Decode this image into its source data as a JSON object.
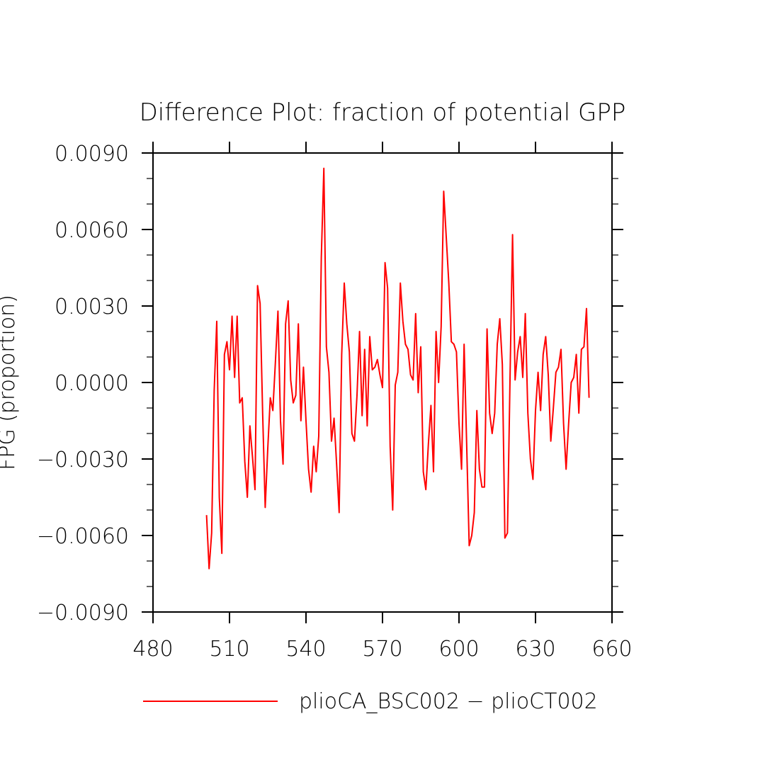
{
  "chart_data": {
    "type": "line",
    "title": "Difference Plot: fraction of potential GPP",
    "xlabel": "",
    "ylabel": "FPG  (proportion)",
    "xlim": [
      480,
      660
    ],
    "ylim": [
      -0.009,
      0.009
    ],
    "x_ticks": [
      480,
      510,
      540,
      570,
      600,
      630,
      660
    ],
    "x_tick_labels": [
      "480",
      "510",
      "540",
      "570",
      "600",
      "630",
      "660"
    ],
    "y_ticks": [
      -0.009,
      -0.006,
      -0.003,
      0.0,
      0.003,
      0.006,
      0.009
    ],
    "y_tick_labels": [
      "−0.0090",
      "−0.0060",
      "−0.0030",
      "0.0000",
      "0.0030",
      "0.0060",
      "0.0090"
    ],
    "series": [
      {
        "name": "plioCA_BSC002 − plioCT002",
        "color": "#ff0000",
        "x": [
          501,
          502,
          503,
          504,
          505,
          506,
          507,
          508,
          509,
          510,
          511,
          512,
          513,
          514,
          515,
          516,
          517,
          518,
          519,
          520,
          521,
          522,
          523,
          524,
          525,
          526,
          527,
          528,
          529,
          530,
          531,
          532,
          533,
          534,
          535,
          536,
          537,
          538,
          539,
          540,
          541,
          542,
          543,
          544,
          545,
          546,
          547,
          548,
          549,
          550,
          551,
          552,
          553,
          554,
          555,
          556,
          557,
          558,
          559,
          560,
          561,
          562,
          563,
          564,
          565,
          566,
          567,
          568,
          569,
          570,
          571,
          572,
          573,
          574,
          575,
          576,
          577,
          578,
          579,
          580,
          581,
          582,
          583,
          584,
          585,
          586,
          587,
          588,
          589,
          590,
          591,
          592,
          593,
          594,
          595,
          596,
          597,
          598,
          599,
          600,
          601,
          602,
          603,
          604,
          605,
          606,
          607,
          608,
          609,
          610,
          611,
          612,
          613,
          614,
          615,
          616,
          617,
          618,
          619,
          620,
          621,
          622,
          623,
          624,
          625,
          626,
          627,
          628,
          629,
          630,
          631,
          632,
          633,
          634,
          635,
          636,
          637,
          638,
          639,
          640,
          641,
          642,
          643,
          644,
          645,
          646,
          647,
          648,
          649,
          650,
          651
        ],
        "values": [
          -0.0052,
          -0.0073,
          -0.0059,
          -0.0003,
          0.0024,
          -0.0045,
          -0.0067,
          0.0011,
          0.0016,
          0.0005,
          0.0026,
          0.0002,
          0.0026,
          -0.0008,
          -0.0006,
          -0.0031,
          -0.0045,
          -0.0017,
          -0.0029,
          -0.0042,
          0.0038,
          0.0031,
          -0.0012,
          -0.0049,
          -0.0026,
          -0.0006,
          -0.0011,
          0.0008,
          0.0028,
          -0.0015,
          -0.0032,
          0.0023,
          0.0032,
          0.0001,
          -0.0008,
          -0.0005,
          0.0023,
          -0.0015,
          0.0006,
          -0.0015,
          -0.0034,
          -0.0043,
          -0.0025,
          -0.0035,
          -0.0021,
          0.0049,
          0.0084,
          0.0014,
          0.0004,
          -0.0023,
          -0.0014,
          -0.0032,
          -0.0051,
          0.0011,
          0.0039,
          0.0023,
          0.0012,
          -0.002,
          -0.0023,
          -0.0005,
          0.002,
          -0.0013,
          0.0013,
          -0.0017,
          0.0018,
          0.0005,
          0.0006,
          0.0009,
          0.0003,
          -0.0002,
          0.0047,
          0.0037,
          -0.0025,
          -0.005,
          -0.0001,
          0.0004,
          0.0039,
          0.0024,
          0.0015,
          0.0013,
          0.0003,
          0.0001,
          0.0027,
          -0.0004,
          0.0014,
          -0.0035,
          -0.0042,
          -0.0024,
          -0.0009,
          -0.0035,
          0.002,
          0.0,
          0.0022,
          0.0075,
          0.0057,
          0.0039,
          0.0016,
          0.0015,
          0.0012,
          -0.0016,
          -0.0034,
          0.0015,
          -0.0024,
          -0.0064,
          -0.006,
          -0.0051,
          -0.0011,
          -0.0034,
          -0.0041,
          -0.0041,
          0.0021,
          -0.0012,
          -0.002,
          -0.0012,
          0.0015,
          0.0025,
          0.0007,
          -0.0061,
          -0.0059,
          0.0001,
          0.0058,
          0.0001,
          0.0012,
          0.0018,
          0.0002,
          0.0027,
          -0.0012,
          -0.003,
          -0.0038,
          -0.0011,
          0.0004,
          -0.0011,
          0.0011,
          0.0018,
          0.0003,
          -0.0023,
          -0.001,
          0.0004,
          0.0006,
          0.0013,
          -0.0016,
          -0.0034,
          -0.0016,
          -0.0,
          0.0002,
          0.0011,
          -0.0012,
          0.0013,
          0.0014,
          0.0029,
          -0.0006
        ]
      }
    ],
    "legend": {
      "label": "plioCA_BSC002 − plioCT002",
      "placement": "bottom"
    },
    "grid": false
  }
}
